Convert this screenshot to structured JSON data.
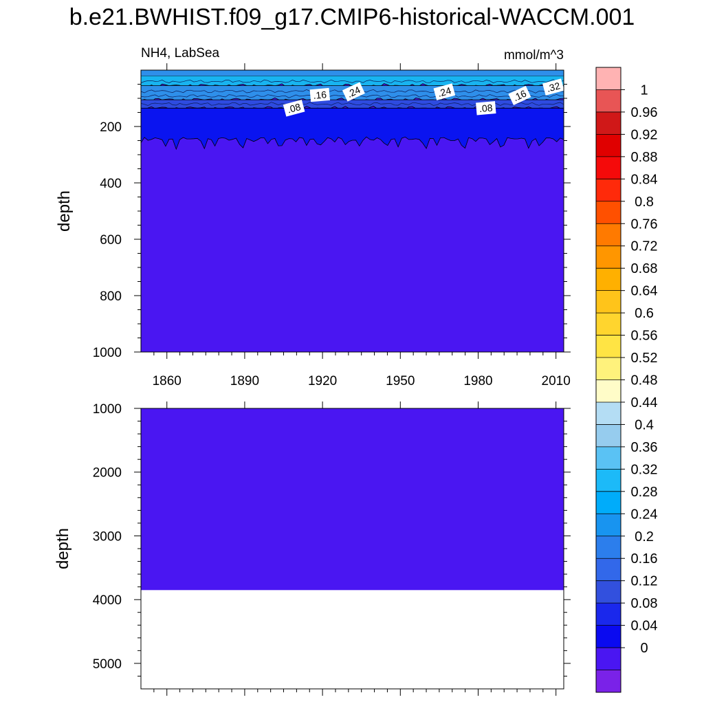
{
  "title": "b.e21.BWHIST.f09_g17.CMIP6-historical-WACCM.001",
  "chart_data": [
    {
      "type": "heatmap",
      "panel": "upper",
      "left_label": "NH4, LabSea",
      "right_label": "mmol/m^3",
      "ylabel": "depth",
      "xlabel": "",
      "x_range": [
        1850,
        2013
      ],
      "ylim": [
        0,
        1000
      ],
      "y_inverted": true,
      "x_ticks": [
        "1860",
        "1890",
        "1920",
        "1950",
        "1980",
        "2010"
      ],
      "x_tick_values": [
        1860,
        1890,
        1920,
        1950,
        1980,
        2010
      ],
      "y_ticks": [
        "200",
        "400",
        "600",
        "800",
        "1000"
      ],
      "y_tick_values": [
        200,
        400,
        600,
        800,
        1000
      ],
      "layers": [
        {
          "level": "0.32+",
          "depth_top": 20,
          "depth_bottom": 55,
          "color": "#18B4F0"
        },
        {
          "level": "0.16-0.28",
          "depth_top": 55,
          "depth_bottom": 105,
          "color": "#2E8FEA"
        },
        {
          "level": "0.08-0.12",
          "depth_top": 105,
          "depth_bottom": 135,
          "color": "#2E4BE0"
        },
        {
          "level": "0.04-0.08",
          "depth_top": 135,
          "depth_bottom": 245,
          "color": "#0A14F0"
        },
        {
          "level": "0-0.04",
          "depth_top": 245,
          "depth_bottom": 1000,
          "color": "#4A16F2"
        }
      ],
      "contour_labels": [
        {
          "text": ".08",
          "year": 1909,
          "depth": 135
        },
        {
          "text": ".16",
          "year": 1919,
          "depth": 88
        },
        {
          "text": ".24",
          "year": 1932,
          "depth": 77
        },
        {
          "text": ".24",
          "year": 1967,
          "depth": 77
        },
        {
          "text": ".08",
          "year": 1983,
          "depth": 135
        },
        {
          "text": ".16",
          "year": 1996,
          "depth": 90
        },
        {
          "text": ".32",
          "year": 2009,
          "depth": 60
        }
      ]
    },
    {
      "type": "heatmap",
      "panel": "lower",
      "ylabel": "depth",
      "xlabel": "",
      "x_range": [
        1850,
        2013
      ],
      "ylim": [
        1000,
        5400
      ],
      "y_inverted": true,
      "y_ticks": [
        "1000",
        "2000",
        "3000",
        "4000",
        "5000"
      ],
      "y_tick_values": [
        1000,
        2000,
        3000,
        4000,
        5000
      ],
      "filled_to_depth": 3850,
      "fill_color": "#4A16F2",
      "below_fill": "missing (white)"
    },
    {
      "type": "colorbar",
      "labels": [
        "1",
        "0.96",
        "0.92",
        "0.88",
        "0.84",
        "0.8",
        "0.76",
        "0.72",
        "0.68",
        "0.64",
        "0.6",
        "0.56",
        "0.52",
        "0.48",
        "0.44",
        "0.4",
        "0.36",
        "0.32",
        "0.28",
        "0.24",
        "0.2",
        "0.16",
        "0.12",
        "0.08",
        "0.04",
        "0"
      ],
      "colors_top_to_bottom": [
        "#FFB3B3",
        "#E85555",
        "#D01818",
        "#E00000",
        "#F50A0A",
        "#FF2A0A",
        "#FF5000",
        "#FF7A00",
        "#FF9600",
        "#FFB000",
        "#FFC41A",
        "#FFD52E",
        "#FFE444",
        "#FFF27C",
        "#FFFCC8",
        "#B4DDF4",
        "#96CCEE",
        "#5AC2F4",
        "#1CBAF8",
        "#00ACFA",
        "#1894F0",
        "#2C7EEC",
        "#3268EA",
        "#3250DE",
        "#1A28EC",
        "#0A0AF0",
        "#4A16F2",
        "#7A22E8"
      ]
    }
  ]
}
